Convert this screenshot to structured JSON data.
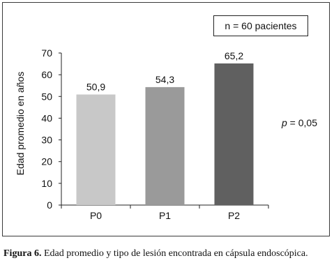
{
  "chart_data": {
    "type": "bar",
    "categories": [
      "P0",
      "P1",
      "P2"
    ],
    "values": [
      50.9,
      54.3,
      65.2
    ],
    "value_labels": [
      "50,9",
      "54,3",
      "65,2"
    ],
    "ylabel": "Edad promedio en años",
    "xlabel": "",
    "ylim": [
      0,
      70
    ],
    "yticks": [
      0,
      10,
      20,
      30,
      40,
      50,
      60,
      70
    ],
    "bar_colors": [
      "#c8c8c8",
      "#9a9a9a",
      "#606060"
    ],
    "grid": false,
    "annotations": {
      "sample": "n = 60 pacientes",
      "p_label": "p",
      "p_value": " = 0,05"
    }
  },
  "caption": {
    "label": "Figura 6.",
    "text": " Edad promedio y tipo de lesión encontrada en cápsula endoscópica."
  }
}
